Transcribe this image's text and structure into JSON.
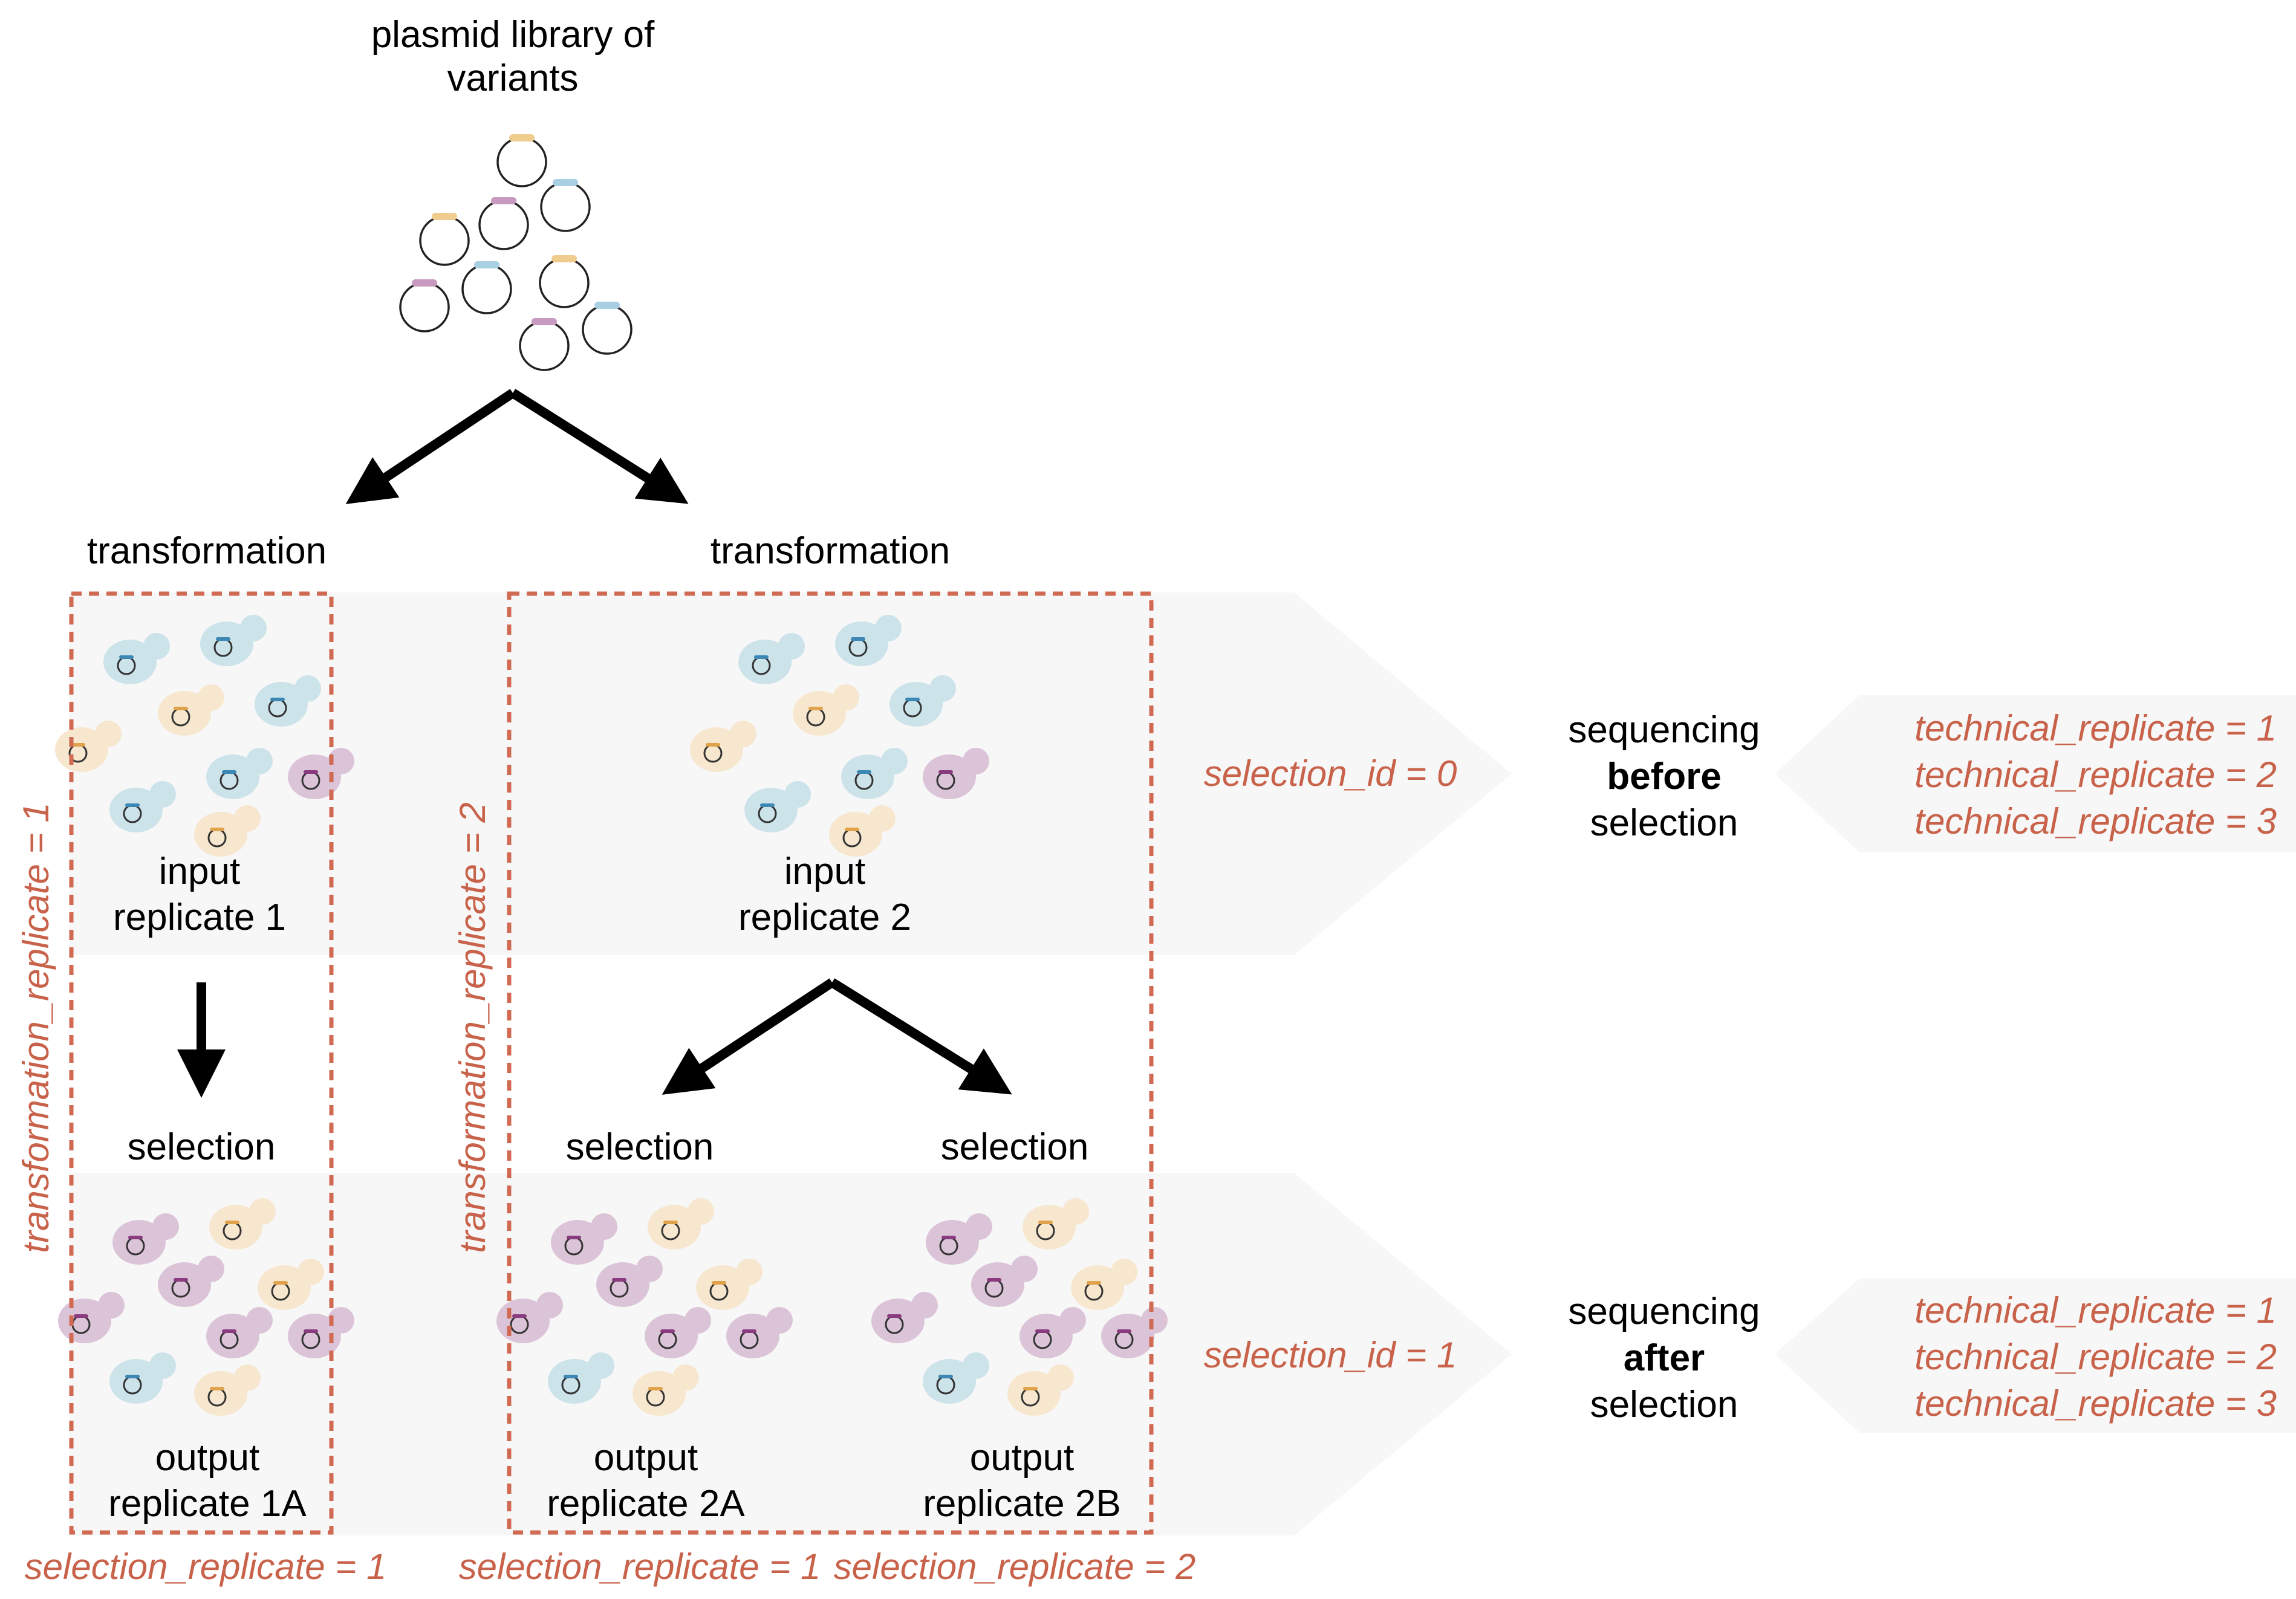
{
  "library": {
    "line1": "plasmid library of",
    "line2": "variants"
  },
  "steps": {
    "transformation": "transformation",
    "selection": "selection"
  },
  "groups": {
    "input_1": {
      "line1": "input",
      "line2": "replicate 1"
    },
    "input_2": {
      "line1": "input",
      "line2": "replicate 2"
    },
    "output_1a": {
      "line1": "output",
      "line2": "replicate 1A"
    },
    "output_2a": {
      "line1": "output",
      "line2": "replicate 2A"
    },
    "output_2b": {
      "line1": "output",
      "line2": "replicate 2B"
    }
  },
  "annotations": {
    "transformation_replicate_1": "transformation_replicate = 1",
    "transformation_replicate_2": "transformation_replicate = 2",
    "selection_id_0": "selection_id = 0",
    "selection_id_1": "selection_id = 1",
    "selection_replicate_1": "selection_replicate = 1",
    "selection_replicate_2": "selection_replicate = 2",
    "technical_replicate_1": "technical_replicate = 1",
    "technical_replicate_2": "technical_replicate = 2",
    "technical_replicate_3": "technical_replicate = 3"
  },
  "sequencing": {
    "before": {
      "line1": "sequencing",
      "line2": "before",
      "line3": "selection"
    },
    "after": {
      "line1": "sequencing",
      "line2": "after",
      "line3": "selection"
    }
  },
  "colors": {
    "annotation": "#c8624a",
    "panel": "#f7f7f7",
    "blue": "#cde3ea",
    "blue_mark": "#3d87b5",
    "yellow": "#f7e7cf",
    "yellow_mark": "#e0a24a",
    "purple": "#dcc4d8",
    "purple_mark": "#8a3a7e"
  }
}
